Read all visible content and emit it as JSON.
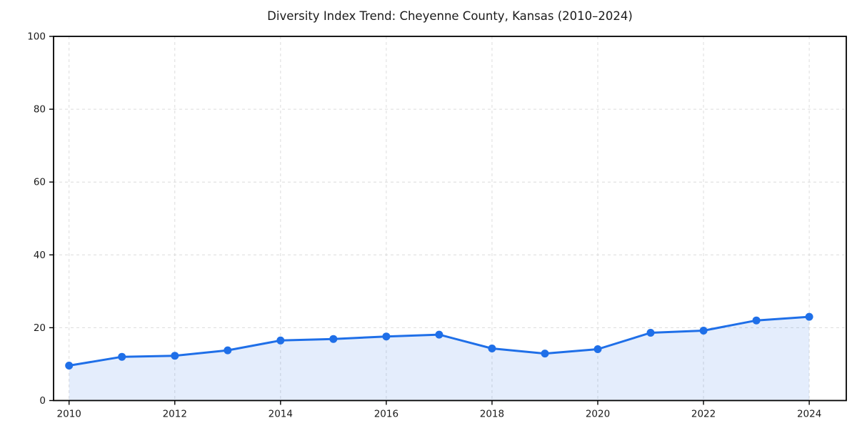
{
  "chart_data": {
    "type": "area",
    "title": "Diversity Index Trend: Cheyenne County, Kansas (2010–2024)",
    "x": [
      2010,
      2011,
      2012,
      2013,
      2014,
      2015,
      2016,
      2017,
      2018,
      2019,
      2020,
      2021,
      2022,
      2023,
      2024
    ],
    "values": [
      9.6,
      12.0,
      12.3,
      13.8,
      16.5,
      16.9,
      17.6,
      18.1,
      14.3,
      12.9,
      14.1,
      18.6,
      19.2,
      22.0,
      23.0
    ],
    "series_name": "Diversity Index",
    "xlabel": "",
    "ylabel": "",
    "xticks": [
      2010,
      2012,
      2014,
      2016,
      2018,
      2020,
      2022,
      2024
    ],
    "yticks": [
      0,
      20,
      40,
      60,
      80,
      100
    ],
    "ylim": [
      0,
      100
    ],
    "grid": true,
    "grid_style": "dashed",
    "legend_position": "none",
    "colors": {
      "line": "#1f6fe8",
      "marker": "#1f6fe8",
      "fill": "#1f6fe8",
      "fill_opacity": 0.12,
      "grid": "#dcdcdc",
      "spine": "#000000",
      "text": "#1a1a1a",
      "background": "#ffffff"
    }
  }
}
